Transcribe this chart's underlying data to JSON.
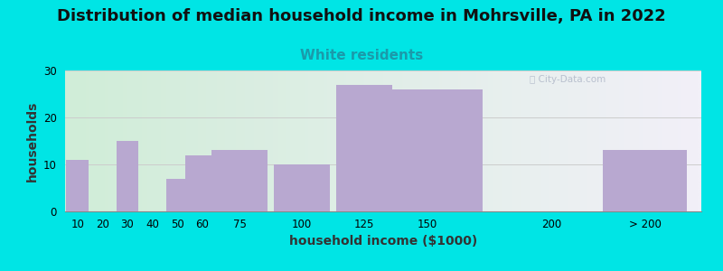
{
  "title": "Distribution of median household income in Mohrsville, PA in 2022",
  "subtitle": "White residents",
  "xlabel": "household income ($1000)",
  "ylabel": "households",
  "bar_centers": [
    10,
    20,
    30,
    40,
    50,
    60,
    75,
    100,
    125,
    150,
    200,
    237.5
  ],
  "bar_widths": [
    10,
    10,
    10,
    10,
    10,
    15,
    25,
    25,
    25,
    50,
    37.5,
    37.5
  ],
  "bar_values": [
    11,
    0,
    15,
    0,
    7,
    12,
    13,
    10,
    27,
    26,
    0,
    13
  ],
  "bar_color": "#b8a8d0",
  "bg_color": "#00e5e5",
  "grad_left": "#d0edd8",
  "grad_right": "#f2f0f8",
  "yticks": [
    0,
    10,
    20,
    30
  ],
  "ylim": [
    0,
    30
  ],
  "xlim_min": 5,
  "xlim_max": 260,
  "xtick_positions": [
    10,
    20,
    30,
    40,
    50,
    60,
    75,
    100,
    125,
    150,
    200,
    237.5
  ],
  "xtick_labels": [
    "10",
    "20",
    "30",
    "40",
    "50",
    "60",
    "75",
    "100",
    "125",
    "150",
    "200",
    "> 200"
  ],
  "title_fontsize": 13,
  "subtitle_fontsize": 11,
  "subtitle_color": "#1a9aaa",
  "axis_label_fontsize": 10,
  "tick_fontsize": 8.5,
  "watermark": "ⓘ City-Data.com"
}
